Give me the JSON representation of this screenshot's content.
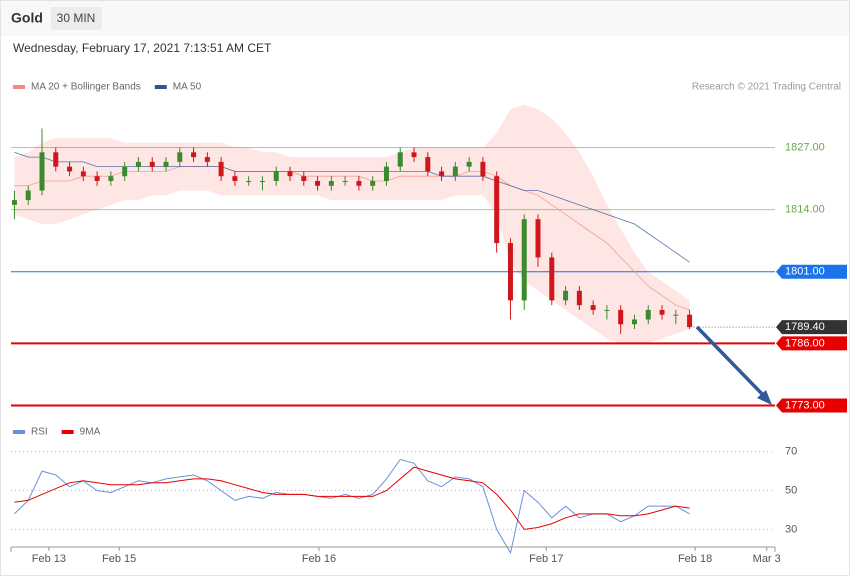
{
  "header": {
    "title": "Gold",
    "interval": "30 MIN",
    "timestamp": "Wednesday, February 17, 2021 7:13:51 AM CET",
    "credit": "Research © 2021 Trading Central"
  },
  "chart_data": [
    {
      "type": "candlestick",
      "xlim": [
        -0.25,
        55.2
      ],
      "xticks": [
        {
          "value": 2.5,
          "label": "Feb 13"
        },
        {
          "value": 7.6,
          "label": "Feb 15"
        },
        {
          "value": 22.1,
          "label": "Feb 16"
        },
        {
          "value": 38.6,
          "label": "Feb 17"
        },
        {
          "value": 49.4,
          "label": "Feb 18"
        },
        {
          "value": 54.6,
          "label": "Mar 3"
        }
      ],
      "ylim": [
        1771,
        1838
      ],
      "up_color": "#3c8a2e",
      "down_color": "#d0161b",
      "open": [
        1815,
        1816,
        1818,
        1826,
        1823,
        1822,
        1821,
        1820,
        1821,
        1823,
        1824,
        1823,
        1824,
        1826,
        1825,
        1824,
        1821,
        1820,
        1820,
        1820,
        1822,
        1821,
        1820,
        1819,
        1820,
        1820,
        1819,
        1820,
        1823,
        1826,
        1825,
        1822,
        1821,
        1823,
        1824,
        1821,
        1807,
        1795,
        1812,
        1804,
        1795,
        1797,
        1794,
        1793,
        1793,
        1790,
        1791,
        1793,
        1792,
        1792
      ],
      "high": [
        1818,
        1819,
        1831,
        1827,
        1824,
        1823,
        1822,
        1822,
        1824,
        1825,
        1825,
        1825,
        1827,
        1827,
        1826,
        1825,
        1822,
        1821,
        1821,
        1823,
        1823,
        1822,
        1821,
        1821,
        1821,
        1821,
        1821,
        1824,
        1827,
        1827,
        1826,
        1823,
        1824,
        1825,
        1825,
        1822,
        1808,
        1813,
        1813,
        1805,
        1798,
        1798,
        1795,
        1794,
        1794,
        1792,
        1794,
        1794,
        1793,
        1793
      ],
      "low": [
        1812,
        1815,
        1817,
        1822,
        1821,
        1820,
        1819,
        1819,
        1820,
        1822,
        1822,
        1822,
        1823,
        1824,
        1823,
        1820,
        1819,
        1819,
        1818,
        1819,
        1820,
        1819,
        1818,
        1818,
        1819,
        1818,
        1818,
        1819,
        1822,
        1824,
        1821,
        1820,
        1820,
        1822,
        1820,
        1805,
        1791,
        1793,
        1802,
        1794,
        1794,
        1793,
        1792,
        1791,
        1788,
        1789,
        1790,
        1791,
        1790,
        1789
      ],
      "close": [
        1816,
        1818,
        1826,
        1823,
        1822,
        1821,
        1820,
        1821,
        1823,
        1824,
        1823,
        1824,
        1826,
        1825,
        1824,
        1821,
        1820,
        1820,
        1820,
        1822,
        1821,
        1820,
        1819,
        1820,
        1820,
        1819,
        1820,
        1823,
        1826,
        1825,
        1822,
        1821,
        1823,
        1824,
        1821,
        1807,
        1795,
        1812,
        1804,
        1795,
        1797,
        1794,
        1793,
        1793,
        1790,
        1791,
        1793,
        1792,
        1792,
        1789.4
      ],
      "series": [
        {
          "name": "MA 20 + Bollinger Bands",
          "color": "#f28b82",
          "values": [
            1819,
            1819,
            1820,
            1820,
            1820,
            1821,
            1821,
            1821,
            1822,
            1822,
            1822,
            1822,
            1823,
            1823,
            1823,
            1823,
            1822,
            1822,
            1822,
            1822,
            1822,
            1821,
            1821,
            1821,
            1821,
            1821,
            1820,
            1820,
            1821,
            1821,
            1821,
            1821,
            1821,
            1822,
            1822,
            1821,
            1819,
            1818,
            1817,
            1815,
            1813,
            1811,
            1809,
            1807,
            1804,
            1801,
            1798,
            1796,
            1794,
            1793
          ],
          "upper": [
            1825,
            1826,
            1828,
            1829,
            1829,
            1829,
            1829,
            1829,
            1828,
            1828,
            1828,
            1828,
            1828,
            1828,
            1828,
            1828,
            1827,
            1827,
            1826,
            1826,
            1825,
            1825,
            1825,
            1825,
            1825,
            1825,
            1825,
            1825,
            1826,
            1827,
            1827,
            1827,
            1827,
            1827,
            1827,
            1830,
            1835,
            1836,
            1835,
            1833,
            1830,
            1826,
            1821,
            1815,
            1810,
            1805,
            1801,
            1799,
            1797,
            1795
          ],
          "lower": [
            1813,
            1812,
            1811,
            1811,
            1812,
            1813,
            1814,
            1815,
            1816,
            1816,
            1817,
            1817,
            1818,
            1818,
            1818,
            1817,
            1817,
            1817,
            1817,
            1817,
            1817,
            1817,
            1817,
            1816,
            1816,
            1816,
            1816,
            1816,
            1816,
            1816,
            1816,
            1816,
            1817,
            1817,
            1817,
            1813,
            1803,
            1799,
            1797,
            1795,
            1793,
            1791,
            1789,
            1787,
            1786,
            1786,
            1786,
            1787,
            1788,
            1789
          ]
        },
        {
          "name": "MA 50",
          "color": "#2f5596",
          "values": [
            1826,
            1825,
            1825,
            1824,
            1824,
            1824,
            1823,
            1823,
            1823,
            1823,
            1823,
            1823,
            1823,
            1823,
            1823,
            1823,
            1822,
            1822,
            1822,
            1822,
            1822,
            1822,
            1822,
            1822,
            1822,
            1822,
            1822,
            1822,
            1822,
            1822,
            1822,
            1821,
            1821,
            1821,
            1821,
            1820,
            1819,
            1818,
            1818,
            1817,
            1816,
            1815,
            1814,
            1813,
            1812,
            1811,
            1809,
            1807,
            1805,
            1803
          ]
        }
      ],
      "levels": [
        {
          "value": 1827,
          "label": "1827.00",
          "color": "#6aa84f",
          "tag": false
        },
        {
          "value": 1814,
          "label": "1814.00",
          "color": "#6aa84f",
          "tag": false
        },
        {
          "value": 1801,
          "label": "1801.00",
          "color": "#1a73e8",
          "tag": true
        },
        {
          "value": 1789.4,
          "label": "1789.40",
          "color": "#333333",
          "tag": true,
          "dotted": true
        },
        {
          "value": 1786,
          "label": "1786.00",
          "color": "#e60000",
          "tag": true
        },
        {
          "value": 1773,
          "label": "1773.00",
          "color": "#e60000",
          "tag": true
        }
      ]
    },
    {
      "type": "line",
      "ylim": [
        22,
        76
      ],
      "yticks": [
        70,
        50,
        30
      ],
      "grid": true,
      "series": [
        {
          "name": "RSI",
          "color": "#6b8fe0",
          "values": [
            38,
            45,
            60,
            58,
            52,
            55,
            50,
            49,
            52,
            55,
            54,
            56,
            57,
            58,
            55,
            50,
            45,
            47,
            46,
            49,
            48,
            48,
            47,
            46,
            48,
            46,
            48,
            56,
            66,
            64,
            55,
            52,
            57,
            56,
            52,
            30,
            18,
            50,
            44,
            36,
            42,
            36,
            38,
            38,
            34,
            37,
            42,
            42,
            42,
            38
          ]
        },
        {
          "name": "9MA",
          "color": "#e60000",
          "values": [
            44,
            45,
            48,
            51,
            54,
            55,
            54,
            53,
            53,
            53,
            54,
            54,
            55,
            56,
            56,
            55,
            53,
            51,
            49,
            48,
            48,
            48,
            47,
            47,
            47,
            47,
            47,
            50,
            56,
            62,
            60,
            58,
            56,
            55,
            54,
            48,
            40,
            30,
            31,
            33,
            36,
            38,
            38,
            38,
            37,
            37,
            38,
            40,
            42,
            41
          ]
        }
      ]
    }
  ]
}
